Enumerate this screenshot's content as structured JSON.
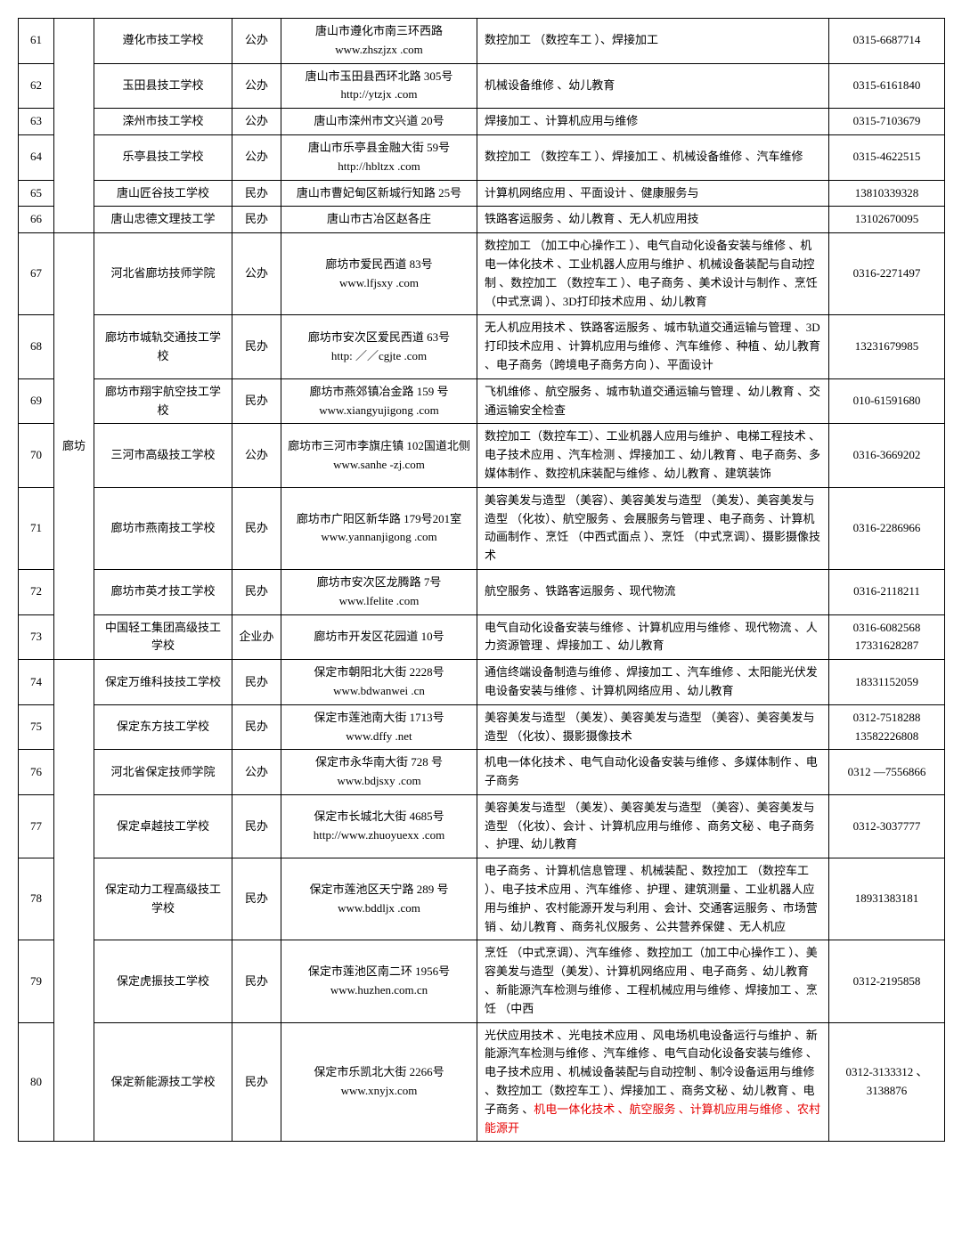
{
  "region_label": "廊坊",
  "region_start_index": 6,
  "region_rowspan": 7,
  "highlight_color": "#e60000",
  "rows": [
    {
      "num": "61",
      "school": "遵化市技工学校",
      "type": "公办",
      "addr1": "唐山市遵化市南三环西路",
      "addr2": "www.zhszjzx .com",
      "majors": "数控加工 （数控车工 ）、焊接加工",
      "phone": "0315-6687714"
    },
    {
      "num": "62",
      "school": "玉田县技工学校",
      "type": "公办",
      "addr1": "唐山市玉田县西环北路   305号",
      "addr2": "http://ytzjx .com",
      "majors": "机械设备维修 、幼儿教育",
      "phone": "0315-6161840"
    },
    {
      "num": "63",
      "school": "滦州市技工学校",
      "type": "公办",
      "addr1": "唐山市滦州市文兴道   20号",
      "addr2": "",
      "majors": "焊接加工 、计算机应用与维修",
      "phone": "0315-7103679"
    },
    {
      "num": "64",
      "school": "乐亭县技工学校",
      "type": "公办",
      "addr1": "唐山市乐亭县金融大街   59号",
      "addr2": "http://hbltzx .com",
      "majors": "数控加工 （数控车工 ）、焊接加工 、机械设备维修 、汽车维修",
      "phone": "0315-4622515"
    },
    {
      "num": "65",
      "school": "唐山匠谷技工学校",
      "type": "民办",
      "addr1": "唐山市曹妃甸区新城行知路   25号",
      "addr2": "",
      "majors": "计算机网络应用 、平面设计 、健康服务与",
      "phone": "13810339328"
    },
    {
      "num": "66",
      "school": "唐山忠德文理技工学",
      "type": "民办",
      "addr1": "唐山市古冶区赵各庄",
      "addr2": "",
      "majors": "铁路客运服务 、幼儿教育 、无人机应用技",
      "phone": "13102670095"
    },
    {
      "num": "67",
      "school": "河北省廊坊技师学院",
      "type": "公办",
      "addr1": "廊坊市爱民西道   83号",
      "addr2": "www.lfjsxy .com",
      "majors": "数控加工 （加工中心操作工  ）、电气自动化设备安装与维修 、机电一体化技术 、工业机器人应用与维护   、机械设备装配与自动控制 、数控加工 （数控车工 ）、电子商务 、美术设计与制作 、烹饪 （中式烹调 ）、3D打印技术应用 、幼儿教育",
      "phone": "0316-2271497"
    },
    {
      "num": "68",
      "school": "廊坊市城轨交通技工学校",
      "type": "民办",
      "addr1": "廊坊市安次区爱民西道   63号",
      "addr2": "http: ／／cgjte .com",
      "majors": "无人机应用技术  、铁路客运服务\n、城市轨道交通运输与管理 、3D打印技术应用 、计算机应用与维修\n、汽车维修 、种植 、幼儿教育 、电子商务（跨境电子商务方向  ）、平面设计",
      "phone": "13231679985"
    },
    {
      "num": "69",
      "school": "廊坊市翔宇航空技工学校",
      "type": "民办",
      "addr1": "廊坊市燕郊镇冶金路   159 号",
      "addr2": "www.xiangyujigong .com",
      "majors": "飞机维修 、航空服务 、城市轨道交通运输与管理 、幼儿教育 、交通运输安全检查",
      "phone": "010-61591680"
    },
    {
      "num": "70",
      "school": "三河市高级技工学校",
      "type": "公办",
      "addr1": "廊坊市三河市李旗庄镇   102国道北侧",
      "addr2": "www.sanhe -zj.com",
      "majors": "数控加工（数控车工）、工业机器人应用与维护 、电梯工程技术 、电子技术应用 、汽车检测 、焊接加工 、幼儿教育 、电子商务、多媒体制作 、数控机床装配与维修 、幼儿教育 、建筑装饰",
      "phone": "0316-3669202"
    },
    {
      "num": "71",
      "school": "廊坊市燕南技工学校",
      "type": "民办",
      "addr1": "廊坊市广阳区新华路   179号201室",
      "addr2": "www.yannanjigong .com",
      "majors": "美容美发与造型  （美容）、美容美发与造型 （美发）、美容美发与造型 （化妆）、航空服务 、会展服务与管理 、电子商务 、计算机动画制作 、烹饪 （中西式面点 ）、烹饪 （中式烹调）、摄影摄像技术",
      "phone": "0316-2286966"
    },
    {
      "num": "72",
      "school": "廊坊市英才技工学校",
      "type": "民办",
      "addr1": "廊坊市安次区龙腾路   7号",
      "addr2": "www.lfelite .com",
      "majors": "航空服务 、铁路客运服务 、现代物流",
      "phone": "0316-2118211"
    },
    {
      "num": "73",
      "school": "中国轻工集团高级技工学校",
      "type": "企业办",
      "addr1": "廊坊市开发区花园道   10号",
      "addr2": "",
      "majors": "电气自动化设备安装与维修   、计算机应用与维修 、现代物流 、人力资源管理 、焊接加工 、幼儿教育",
      "phone": "0316-6082568 17331628287"
    },
    {
      "num": "74",
      "school": "保定万维科技技工学校",
      "type": "民办",
      "addr1": "保定市朝阳北大街   2228号",
      "addr2": "www.bdwanwei .cn",
      "majors": "通信终端设备制造与维修   、焊接加工 、汽车维修 、太阳能光伏发电设备安装与维修 、计算机网络应用 、幼儿教育",
      "phone": "18331152059"
    },
    {
      "num": "75",
      "school": "保定东方技工学校",
      "type": "民办",
      "addr1": "保定市莲池南大街   1713号",
      "addr2": "www.dffy .net",
      "majors": "美容美发与造型  （美发）、美容美发与造型 （美容）、美容美发与造型 （化妆）、摄影摄像技术",
      "phone": "0312-7518288 13582226808"
    },
    {
      "num": "76",
      "school": "河北省保定技师学院",
      "type": "公办",
      "addr1": "保定市永华南大街   728 号",
      "addr2": "www.bdjsxy .com",
      "majors": "机电一体化技术  、电气自动化设备安装与维修 、多媒体制作 、电子商务",
      "phone": "0312 —7556866"
    },
    {
      "num": "77",
      "school": "保定卓越技工学校",
      "type": "民办",
      "addr1": "保定市长城北大街   4685号",
      "addr2": "http://www.zhuoyuexx .com",
      "majors": "美容美发与造型  （美发）、美容美发与造型 （美容）、美容美发与造型 （化妆）、会计 、计算机应用与维修 、商务文秘 、电子商务 、护理、幼儿教育",
      "phone": "0312-3037777"
    },
    {
      "num": "78",
      "school": "保定动力工程高级技工学校",
      "type": "民办",
      "addr1": "保定市莲池区天宁路   289 号",
      "addr2": "www.bddljx .com",
      "majors": "电子商务 、计算机信息管理 、机械装配 、数控加工 （数控车工 ）、电子技术应用 、汽车维修 、护理 、建筑测量 、工业机器人应用与维护 、农村能源开发与利用  、会计、交通客运服务 、市场营销 、幼儿教育 、商务礼仪服务 、公共营养保健 、无人机应",
      "phone": "18931383181"
    },
    {
      "num": "79",
      "school": "保定虎振技工学校",
      "type": "民办",
      "addr1": "保定市莲池区南二环   1956号",
      "addr2": "www.huzhen.com.cn",
      "majors": "烹饪 （中式烹调）、汽车维修 、数控加工（加工中心操作工  ）、美容美发与造型（美发）、计算机网络应用 、电子商务 、幼儿教育 、新能源汽车检测与维修  、工程机械应用与维修 、焊接加工 、烹饪 （中西",
      "phone": "0312-2195858"
    },
    {
      "num": "80",
      "school": "保定新能源技工学校",
      "type": "民办",
      "addr1": "保定市乐凯北大街   2266号",
      "addr2": "www.xnyjx.com",
      "majors": "光伏应用技术  、光电技术应用  、风电场机电设备运行与维护  、新能源汽车检测与维修 、汽车维修 、电气自动化设备安装与维修 、电子技术应用 、机械设备装配与自动控制 、制冷设备运用与维修  、数控加工（数控车工 ）、焊接加工 、商务文秘 、幼儿教育 、电子商务 、",
      "majors_hl": "机电一体化技术  、航空服务 、计算机应用与维修 、农村能源开",
      "phone": "0312-3133312 、3138876"
    }
  ]
}
